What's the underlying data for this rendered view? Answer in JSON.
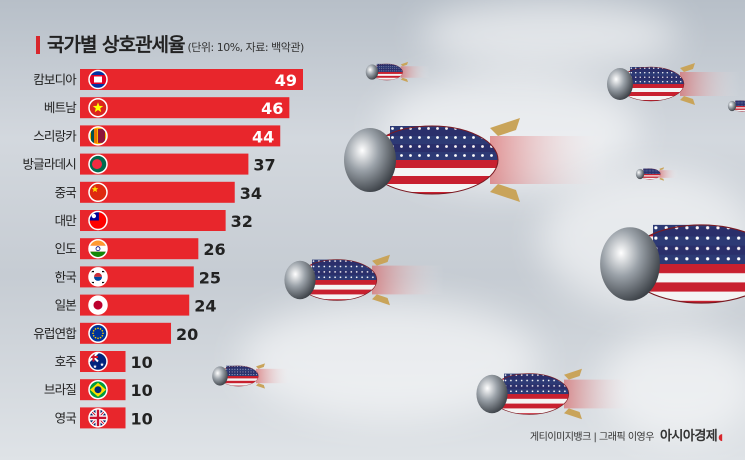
{
  "header": {
    "title": "국가별 상호관세율",
    "unit": "(단위: 10%, 자료: 백악관)"
  },
  "footer": {
    "credit": "게티이미지뱅크 | 그래픽 이영우",
    "brand": "아시아경제"
  },
  "colors": {
    "bar": "#e8262c",
    "accent": "#d8262c",
    "label_on_bar": "#ffffff",
    "label_off_bar": "#222222"
  },
  "chart_data": {
    "type": "bar",
    "orientation": "horizontal",
    "title": "국가별 상호관세율",
    "categories": [
      "캄보디아",
      "베트남",
      "스리랑카",
      "방글라데시",
      "중국",
      "대만",
      "인도",
      "한국",
      "일본",
      "유럽연합",
      "호주",
      "브라질",
      "영국"
    ],
    "values": [
      49,
      46,
      44,
      37,
      34,
      32,
      26,
      25,
      24,
      20,
      10,
      10,
      10
    ],
    "flags": [
      "cambodia-flag",
      "vietnam-flag",
      "sri-lanka-flag",
      "bangladesh-flag",
      "china-flag",
      "taiwan-flag",
      "india-flag",
      "korea-flag",
      "japan-flag",
      "eu-flag",
      "australia-flag",
      "brazil-flag",
      "uk-flag"
    ],
    "xlim": [
      0,
      50
    ],
    "grid": false,
    "legend": "none"
  }
}
